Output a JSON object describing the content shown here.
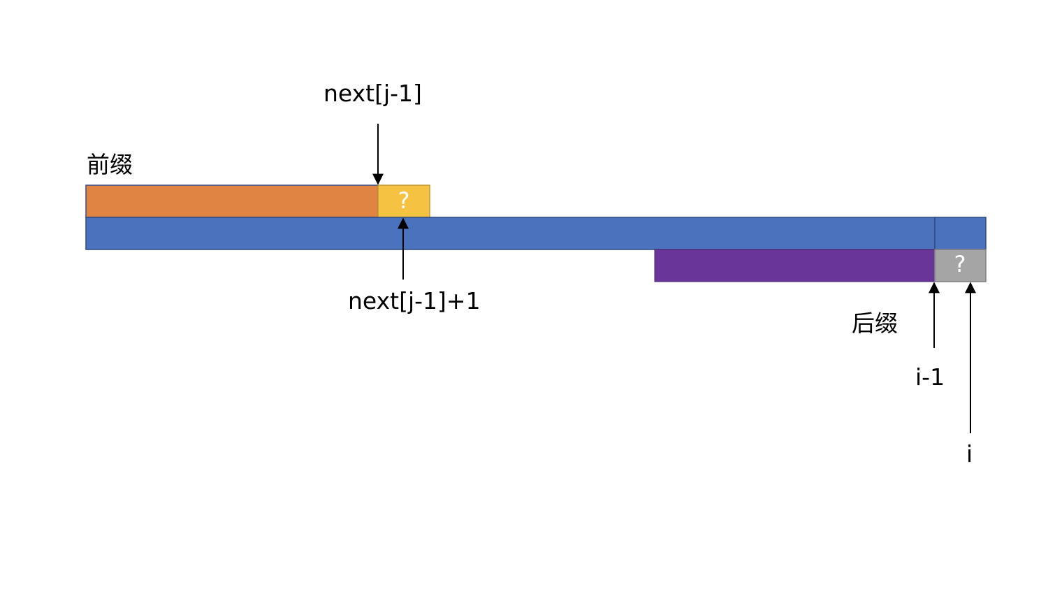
{
  "labels": {
    "prefix": "前缀",
    "suffix": "后缀",
    "next_j_minus_1": "next[j-1]",
    "next_j_minus_1_plus_1": "next[j-1]+1",
    "i_minus_1": "i-1",
    "i": "i",
    "unknown_prefix_char": "?",
    "unknown_suffix_char": "?"
  },
  "colors": {
    "prefix_bar": "#E08444",
    "prefix_next_char": "#F5C242",
    "string_bar": "#4A72BD",
    "suffix_bar": "#6A3599",
    "suffix_next_char": "#A5A5A5",
    "arrow": "#000000"
  }
}
